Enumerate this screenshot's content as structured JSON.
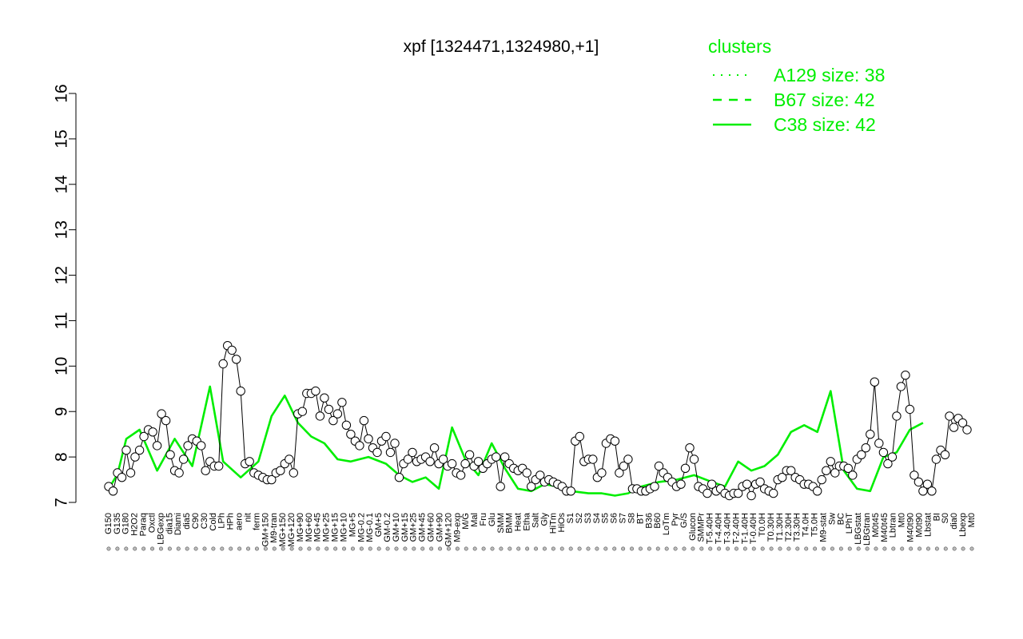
{
  "chart_data": {
    "type": "line",
    "title": "xpf [1324471,1324980,+1]",
    "xlabel": "",
    "ylabel": "",
    "ylim": [
      7,
      16
    ],
    "yticks": [
      7,
      8,
      9,
      10,
      11,
      12,
      13,
      14,
      15,
      16
    ],
    "grid": false,
    "legend": {
      "title": "clusters",
      "placement": "top-right",
      "color": "#00ee00",
      "entries": [
        {
          "label": "A129 size: 38",
          "style": "dotted"
        },
        {
          "label": "B67 size: 42",
          "style": "dashed"
        },
        {
          "label": "C38 size: 42",
          "style": "solid"
        }
      ]
    },
    "line_color": "#00ee00",
    "x_labels": [
      "G150",
      "G135",
      "G180",
      "H2O2",
      "Paraq",
      "Oxctl",
      "LBGexp",
      "dia15",
      "Diami",
      "dia5",
      "C90",
      "C30",
      "Cold",
      "LPh",
      "HPh",
      "aero",
      "nit",
      "ferm",
      "GM+150",
      "M9-tran",
      "MG+150",
      "MG+120",
      "MG+90",
      "MG+60",
      "MG+45",
      "MG+25",
      "MG+15",
      "MG+10",
      "MG+5",
      "MG-0.2",
      "MG-0.1",
      "GM+5",
      "GM-0.2",
      "GM+10",
      "GM+15",
      "GM+25",
      "GM+45",
      "GM+60",
      "GM+90",
      "GM+120",
      "M9-exp",
      "M/G",
      "Mal",
      "Fru",
      "Glu",
      "SMM",
      "BMM",
      "Heat",
      "Etha",
      "Salt",
      "Gly",
      "HiTm",
      "HiOs",
      "S1",
      "S2",
      "S3",
      "S4",
      "S5",
      "S6",
      "S7",
      "S8",
      "BT",
      "B36",
      "B60",
      "LoTm",
      "Pyr",
      "G/S",
      "Glucon",
      "SMMPr",
      "T-5.40H",
      "T-4.40H",
      "T-3.40H",
      "T-2.40H",
      "T-1.40H",
      "T-0.40H",
      "T0.0H",
      "T0.30H",
      "T1.30H",
      "T2.30H",
      "T3.30H",
      "T4.0H",
      "T5.0H",
      "M9-stat",
      "Sw",
      "BC",
      "LPhT",
      "LBGstat",
      "LBGtran",
      "M0t45",
      "M40t45",
      "Lbtran",
      "Mt0",
      "M40t90",
      "M0t90",
      "Lbstat",
      "BI",
      "S0",
      "dia0",
      "Lbexp",
      "Mt0"
    ],
    "series": [
      {
        "style": "solid",
        "points": [
          {
            "x": 1,
            "y": 7.3
          },
          {
            "x": 3,
            "y": 7.62
          },
          {
            "x": 5,
            "y": 8.4
          },
          {
            "x": 8,
            "y": 8.6
          },
          {
            "x": 12,
            "y": 7.7
          },
          {
            "x": 16,
            "y": 8.4
          },
          {
            "x": 20,
            "y": 7.8
          },
          {
            "x": 24,
            "y": 9.55
          },
          {
            "x": 27,
            "y": 7.9
          },
          {
            "x": 31,
            "y": 7.55
          },
          {
            "x": 35,
            "y": 7.9
          },
          {
            "x": 38,
            "y": 8.9
          },
          {
            "x": 41,
            "y": 9.35
          },
          {
            "x": 44,
            "y": 8.75
          },
          {
            "x": 47,
            "y": 8.45
          },
          {
            "x": 50,
            "y": 8.3
          },
          {
            "x": 53,
            "y": 7.95
          },
          {
            "x": 56,
            "y": 7.9
          },
          {
            "x": 60,
            "y": 8.0
          },
          {
            "x": 64,
            "y": 7.85
          },
          {
            "x": 67,
            "y": 7.6
          },
          {
            "x": 70,
            "y": 7.45
          },
          {
            "x": 73,
            "y": 7.55
          },
          {
            "x": 76,
            "y": 7.3
          },
          {
            "x": 79,
            "y": 8.65
          },
          {
            "x": 82,
            "y": 7.95
          },
          {
            "x": 85,
            "y": 7.6
          },
          {
            "x": 88,
            "y": 8.3
          },
          {
            "x": 91,
            "y": 7.75
          },
          {
            "x": 94,
            "y": 7.3
          },
          {
            "x": 97,
            "y": 7.25
          },
          {
            "x": 100,
            "y": 7.4
          },
          {
            "x": 103,
            "y": 7.35
          },
          {
            "x": 106,
            "y": 7.25
          },
          {
            "x": 110,
            "y": 7.2
          },
          {
            "x": 113,
            "y": 7.2
          },
          {
            "x": 116,
            "y": 7.15
          },
          {
            "x": 119,
            "y": 7.2
          },
          {
            "x": 122,
            "y": 7.35
          },
          {
            "x": 126,
            "y": 7.45
          },
          {
            "x": 130,
            "y": 7.5
          },
          {
            "x": 134,
            "y": 7.6
          },
          {
            "x": 138,
            "y": 7.45
          },
          {
            "x": 141,
            "y": 7.35
          },
          {
            "x": 144,
            "y": 7.9
          },
          {
            "x": 147,
            "y": 7.7
          },
          {
            "x": 150,
            "y": 7.8
          },
          {
            "x": 153,
            "y": 8.05
          },
          {
            "x": 156,
            "y": 8.55
          },
          {
            "x": 159,
            "y": 8.7
          },
          {
            "x": 162,
            "y": 8.55
          },
          {
            "x": 165,
            "y": 9.45
          },
          {
            "x": 168,
            "y": 7.7
          },
          {
            "x": 171,
            "y": 7.3
          },
          {
            "x": 174,
            "y": 7.25
          },
          {
            "x": 177,
            "y": 8.0
          },
          {
            "x": 180,
            "y": 8.1
          },
          {
            "x": 183,
            "y": 8.6
          },
          {
            "x": 186,
            "y": 8.75
          }
        ]
      }
    ],
    "points": [
      {
        "x": 1,
        "y": 7.35
      },
      {
        "x": 2,
        "y": 7.25
      },
      {
        "x": 3,
        "y": 7.65
      },
      {
        "x": 4,
        "y": 7.55
      },
      {
        "x": 5,
        "y": 8.15
      },
      {
        "x": 6,
        "y": 7.65
      },
      {
        "x": 7,
        "y": 8.0
      },
      {
        "x": 8,
        "y": 8.15
      },
      {
        "x": 9,
        "y": 8.45
      },
      {
        "x": 10,
        "y": 8.6
      },
      {
        "x": 11,
        "y": 8.55
      },
      {
        "x": 12,
        "y": 8.25
      },
      {
        "x": 13,
        "y": 8.95
      },
      {
        "x": 14,
        "y": 8.8
      },
      {
        "x": 15,
        "y": 8.05
      },
      {
        "x": 16,
        "y": 7.7
      },
      {
        "x": 17,
        "y": 7.65
      },
      {
        "x": 18,
        "y": 7.95
      },
      {
        "x": 19,
        "y": 8.25
      },
      {
        "x": 20,
        "y": 8.4
      },
      {
        "x": 21,
        "y": 8.35
      },
      {
        "x": 22,
        "y": 8.25
      },
      {
        "x": 23,
        "y": 7.7
      },
      {
        "x": 24,
        "y": 7.9
      },
      {
        "x": 25,
        "y": 7.8
      },
      {
        "x": 26,
        "y": 7.8
      },
      {
        "x": 27,
        "y": 10.05
      },
      {
        "x": 28,
        "y": 10.45
      },
      {
        "x": 29,
        "y": 10.35
      },
      {
        "x": 30,
        "y": 10.15
      },
      {
        "x": 31,
        "y": 9.45
      },
      {
        "x": 32,
        "y": 7.85
      },
      {
        "x": 33,
        "y": 7.9
      },
      {
        "x": 34,
        "y": 7.65
      },
      {
        "x": 35,
        "y": 7.6
      },
      {
        "x": 36,
        "y": 7.55
      },
      {
        "x": 37,
        "y": 7.5
      },
      {
        "x": 38,
        "y": 7.5
      },
      {
        "x": 39,
        "y": 7.65
      },
      {
        "x": 40,
        "y": 7.7
      },
      {
        "x": 41,
        "y": 7.85
      },
      {
        "x": 42,
        "y": 7.95
      },
      {
        "x": 43,
        "y": 7.65
      },
      {
        "x": 44,
        "y": 8.95
      },
      {
        "x": 45,
        "y": 9.0
      },
      {
        "x": 46,
        "y": 9.4
      },
      {
        "x": 47,
        "y": 9.4
      },
      {
        "x": 48,
        "y": 9.45
      },
      {
        "x": 49,
        "y": 8.9
      },
      {
        "x": 50,
        "y": 9.3
      },
      {
        "x": 51,
        "y": 9.05
      },
      {
        "x": 52,
        "y": 8.8
      },
      {
        "x": 53,
        "y": 8.95
      },
      {
        "x": 54,
        "y": 9.2
      },
      {
        "x": 55,
        "y": 8.7
      },
      {
        "x": 56,
        "y": 8.5
      },
      {
        "x": 57,
        "y": 8.35
      },
      {
        "x": 58,
        "y": 8.25
      },
      {
        "x": 59,
        "y": 8.8
      },
      {
        "x": 60,
        "y": 8.4
      },
      {
        "x": 61,
        "y": 8.2
      },
      {
        "x": 62,
        "y": 8.1
      },
      {
        "x": 63,
        "y": 8.35
      },
      {
        "x": 64,
        "y": 8.45
      },
      {
        "x": 65,
        "y": 8.1
      },
      {
        "x": 66,
        "y": 8.3
      },
      {
        "x": 67,
        "y": 7.55
      },
      {
        "x": 68,
        "y": 7.85
      },
      {
        "x": 69,
        "y": 7.95
      },
      {
        "x": 70,
        "y": 8.1
      },
      {
        "x": 71,
        "y": 7.9
      },
      {
        "x": 72,
        "y": 7.95
      },
      {
        "x": 73,
        "y": 8.0
      },
      {
        "x": 74,
        "y": 7.9
      },
      {
        "x": 75,
        "y": 8.2
      },
      {
        "x": 76,
        "y": 7.85
      },
      {
        "x": 77,
        "y": 7.95
      },
      {
        "x": 78,
        "y": 7.8
      },
      {
        "x": 79,
        "y": 7.85
      },
      {
        "x": 80,
        "y": 7.65
      },
      {
        "x": 81,
        "y": 7.6
      },
      {
        "x": 82,
        "y": 7.85
      },
      {
        "x": 83,
        "y": 8.05
      },
      {
        "x": 84,
        "y": 7.8
      },
      {
        "x": 85,
        "y": 7.9
      },
      {
        "x": 86,
        "y": 7.75
      },
      {
        "x": 87,
        "y": 7.85
      },
      {
        "x": 88,
        "y": 7.95
      },
      {
        "x": 89,
        "y": 8.0
      },
      {
        "x": 90,
        "y": 7.35
      },
      {
        "x": 91,
        "y": 8.0
      },
      {
        "x": 92,
        "y": 7.85
      },
      {
        "x": 93,
        "y": 7.75
      },
      {
        "x": 94,
        "y": 7.7
      },
      {
        "x": 95,
        "y": 7.75
      },
      {
        "x": 96,
        "y": 7.65
      },
      {
        "x": 97,
        "y": 7.35
      },
      {
        "x": 98,
        "y": 7.5
      },
      {
        "x": 99,
        "y": 7.6
      },
      {
        "x": 100,
        "y": 7.45
      },
      {
        "x": 101,
        "y": 7.5
      },
      {
        "x": 102,
        "y": 7.45
      },
      {
        "x": 103,
        "y": 7.4
      },
      {
        "x": 104,
        "y": 7.35
      },
      {
        "x": 105,
        "y": 7.25
      },
      {
        "x": 106,
        "y": 7.25
      },
      {
        "x": 107,
        "y": 8.35
      },
      {
        "x": 108,
        "y": 8.45
      },
      {
        "x": 109,
        "y": 7.9
      },
      {
        "x": 110,
        "y": 7.95
      },
      {
        "x": 111,
        "y": 7.95
      },
      {
        "x": 112,
        "y": 7.55
      },
      {
        "x": 113,
        "y": 7.65
      },
      {
        "x": 114,
        "y": 8.3
      },
      {
        "x": 115,
        "y": 8.4
      },
      {
        "x": 116,
        "y": 8.35
      },
      {
        "x": 117,
        "y": 7.65
      },
      {
        "x": 118,
        "y": 7.8
      },
      {
        "x": 119,
        "y": 7.95
      },
      {
        "x": 120,
        "y": 7.3
      },
      {
        "x": 121,
        "y": 7.3
      },
      {
        "x": 122,
        "y": 7.25
      },
      {
        "x": 123,
        "y": 7.25
      },
      {
        "x": 124,
        "y": 7.3
      },
      {
        "x": 125,
        "y": 7.35
      },
      {
        "x": 126,
        "y": 7.8
      },
      {
        "x": 127,
        "y": 7.65
      },
      {
        "x": 128,
        "y": 7.55
      },
      {
        "x": 129,
        "y": 7.45
      },
      {
        "x": 130,
        "y": 7.35
      },
      {
        "x": 131,
        "y": 7.4
      },
      {
        "x": 132,
        "y": 7.75
      },
      {
        "x": 133,
        "y": 8.2
      },
      {
        "x": 134,
        "y": 7.95
      },
      {
        "x": 135,
        "y": 7.35
      },
      {
        "x": 136,
        "y": 7.3
      },
      {
        "x": 137,
        "y": 7.2
      },
      {
        "x": 138,
        "y": 7.4
      },
      {
        "x": 139,
        "y": 7.25
      },
      {
        "x": 140,
        "y": 7.3
      },
      {
        "x": 141,
        "y": 7.2
      },
      {
        "x": 142,
        "y": 7.15
      },
      {
        "x": 143,
        "y": 7.2
      },
      {
        "x": 144,
        "y": 7.2
      },
      {
        "x": 145,
        "y": 7.35
      },
      {
        "x": 146,
        "y": 7.4
      },
      {
        "x": 147,
        "y": 7.15
      },
      {
        "x": 148,
        "y": 7.4
      },
      {
        "x": 149,
        "y": 7.45
      },
      {
        "x": 150,
        "y": 7.3
      },
      {
        "x": 151,
        "y": 7.25
      },
      {
        "x": 152,
        "y": 7.2
      },
      {
        "x": 153,
        "y": 7.5
      },
      {
        "x": 154,
        "y": 7.55
      },
      {
        "x": 155,
        "y": 7.7
      },
      {
        "x": 156,
        "y": 7.7
      },
      {
        "x": 157,
        "y": 7.55
      },
      {
        "x": 158,
        "y": 7.5
      },
      {
        "x": 159,
        "y": 7.4
      },
      {
        "x": 160,
        "y": 7.4
      },
      {
        "x": 161,
        "y": 7.35
      },
      {
        "x": 162,
        "y": 7.25
      },
      {
        "x": 163,
        "y": 7.5
      },
      {
        "x": 164,
        "y": 7.7
      },
      {
        "x": 165,
        "y": 7.9
      },
      {
        "x": 166,
        "y": 7.65
      },
      {
        "x": 167,
        "y": 7.8
      },
      {
        "x": 168,
        "y": 7.8
      },
      {
        "x": 169,
        "y": 7.75
      },
      {
        "x": 170,
        "y": 7.6
      },
      {
        "x": 171,
        "y": 7.95
      },
      {
        "x": 172,
        "y": 8.05
      },
      {
        "x": 173,
        "y": 8.2
      },
      {
        "x": 174,
        "y": 8.5
      },
      {
        "x": 175,
        "y": 9.65
      },
      {
        "x": 176,
        "y": 8.3
      },
      {
        "x": 177,
        "y": 8.1
      },
      {
        "x": 178,
        "y": 7.85
      },
      {
        "x": 179,
        "y": 8.0
      },
      {
        "x": 180,
        "y": 8.9
      },
      {
        "x": 181,
        "y": 9.55
      },
      {
        "x": 182,
        "y": 9.8
      },
      {
        "x": 183,
        "y": 9.05
      },
      {
        "x": 184,
        "y": 7.6
      },
      {
        "x": 185,
        "y": 7.45
      },
      {
        "x": 186,
        "y": 7.25
      },
      {
        "x": 187,
        "y": 7.4
      },
      {
        "x": 188,
        "y": 7.25
      },
      {
        "x": 189,
        "y": 7.95
      },
      {
        "x": 190,
        "y": 8.15
      },
      {
        "x": 191,
        "y": 8.05
      },
      {
        "x": 192,
        "y": 8.9
      },
      {
        "x": 193,
        "y": 8.65
      },
      {
        "x": 194,
        "y": 8.85
      },
      {
        "x": 195,
        "y": 8.75
      },
      {
        "x": 196,
        "y": 8.6
      }
    ]
  }
}
